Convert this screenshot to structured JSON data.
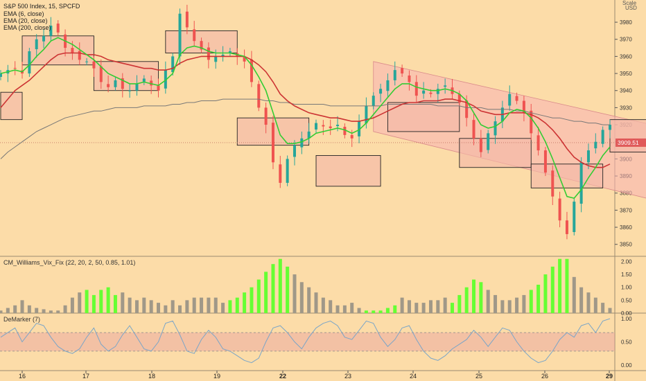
{
  "header": {
    "symbol_line": "S&P 500 Index, 15, SPCFD",
    "indicators": [
      "EMA (6, close)",
      "EMA (20, close)",
      "EMA (200, close)"
    ],
    "currency_line1": "Scale",
    "currency_line2": "USD"
  },
  "panes": {
    "vix_title": "CM_Williams_Vix_Fix (22, 20, 2, 50, 0.85, 1.01)",
    "demarker_title": "DeMarker (7)"
  },
  "last_price": "3909.51",
  "colors": {
    "background": "#fcdca8",
    "bull_candle": "#26a69a",
    "bear_candle": "#ef5350",
    "ema6": "#33cc33",
    "ema20": "#cc3333",
    "ema200": "#777777",
    "vix_green": "#66ff33",
    "vix_gray": "#a09888",
    "demarker_line": "#7aa5c8",
    "channel": "#f7b2b2"
  },
  "chart_data": {
    "type": "candlestick",
    "price_axis": {
      "ticks": [
        3850,
        3860,
        3870,
        3880,
        3890,
        3900,
        3910,
        3920,
        3930,
        3940,
        3950,
        3960,
        3970,
        3980
      ],
      "ylim": [
        3843,
        3993
      ]
    },
    "vix_axis": {
      "ticks": [
        "0.00",
        "0.50",
        "1.00",
        "1.50",
        "2.00"
      ],
      "ylim": [
        0,
        2.2
      ]
    },
    "demarker_axis": {
      "ticks": [
        "0.00",
        "0.50",
        "1.00"
      ],
      "band": [
        0.3,
        0.7
      ]
    },
    "x_ticks": [
      "16",
      "17",
      "18",
      "19",
      "22",
      "23",
      "24",
      "25",
      "26",
      "29"
    ],
    "price_points": [
      3950,
      3952,
      3953,
      3950,
      3963,
      3970,
      3972,
      3978,
      3974,
      3965,
      3962,
      3958,
      3957,
      3953,
      3945,
      3942,
      3946,
      3941,
      3940,
      3944,
      3947,
      3943,
      3940,
      3952,
      3960,
      3985,
      3977,
      3969,
      3964,
      3958,
      3960,
      3961,
      3963,
      3960,
      3957,
      3945,
      3930,
      3920,
      3898,
      3886,
      3900,
      3908,
      3912,
      3916,
      3921,
      3919,
      3918,
      3920,
      3914,
      3912,
      3922,
      3931,
      3937,
      3941,
      3946,
      3952,
      3950,
      3945,
      3937,
      3940,
      3938,
      3941,
      3943,
      3938,
      3933,
      3924,
      3912,
      3904,
      3915,
      3922,
      3930,
      3938,
      3934,
      3927,
      3915,
      3905,
      3892,
      3878,
      3864,
      3856,
      3875,
      3898,
      3905,
      3910,
      3917,
      3920
    ],
    "ema6": [
      3950,
      3951,
      3952,
      3951,
      3955,
      3960,
      3964,
      3969,
      3971,
      3969,
      3967,
      3964,
      3961,
      3958,
      3954,
      3950,
      3948,
      3946,
      3944,
      3944,
      3945,
      3944,
      3943,
      3946,
      3950,
      3961,
      3965,
      3966,
      3965,
      3963,
      3962,
      3962,
      3962,
      3961,
      3960,
      3955,
      3948,
      3940,
      3927,
      3914,
      3909,
      3909,
      3910,
      3912,
      3915,
      3916,
      3917,
      3918,
      3917,
      3915,
      3917,
      3921,
      3926,
      3931,
      3936,
      3941,
      3944,
      3944,
      3942,
      3941,
      3940,
      3940,
      3941,
      3940,
      3938,
      3934,
      3927,
      3920,
      3918,
      3919,
      3922,
      3927,
      3929,
      3928,
      3924,
      3918,
      3910,
      3900,
      3889,
      3878,
      3877,
      3882,
      3889,
      3895,
      3902,
      3907
    ],
    "ema20": [
      3930,
      3935,
      3940,
      3943,
      3946,
      3950,
      3954,
      3958,
      3961,
      3962,
      3962,
      3962,
      3961,
      3961,
      3960,
      3958,
      3957,
      3956,
      3955,
      3954,
      3953,
      3953,
      3952,
      3952,
      3953,
      3956,
      3958,
      3959,
      3960,
      3960,
      3960,
      3960,
      3960,
      3960,
      3960,
      3958,
      3955,
      3951,
      3945,
      3938,
      3934,
      3931,
      3929,
      3927,
      3926,
      3925,
      3924,
      3924,
      3923,
      3922,
      3922,
      3923,
      3924,
      3926,
      3928,
      3930,
      3932,
      3933,
      3933,
      3934,
      3934,
      3934,
      3935,
      3935,
      3934,
      3933,
      3931,
      3928,
      3927,
      3926,
      3926,
      3927,
      3927,
      3927,
      3926,
      3924,
      3921,
      3917,
      3912,
      3906,
      3901,
      3898,
      3896,
      3895,
      3895,
      3897
    ],
    "ema200": [
      3900,
      3904,
      3907,
      3910,
      3913,
      3916,
      3918,
      3920,
      3922,
      3924,
      3925,
      3926,
      3927,
      3928,
      3928,
      3929,
      3930,
      3930,
      3930,
      3930,
      3931,
      3931,
      3931,
      3931,
      3932,
      3932,
      3933,
      3933,
      3934,
      3934,
      3934,
      3935,
      3935,
      3935,
      3935,
      3935,
      3935,
      3934,
      3934,
      3933,
      3933,
      3932,
      3932,
      3932,
      3932,
      3932,
      3931,
      3931,
      3931,
      3931,
      3931,
      3931,
      3931,
      3931,
      3932,
      3932,
      3932,
      3932,
      3932,
      3932,
      3932,
      3931,
      3931,
      3931,
      3931,
      3930,
      3930,
      3930,
      3929,
      3929,
      3929,
      3929,
      3928,
      3928,
      3927,
      3926,
      3925,
      3924,
      3924,
      3923,
      3922,
      3922,
      3921,
      3921,
      3920,
      3920
    ],
    "vix": [
      0.1,
      0.2,
      0.3,
      0.5,
      0.3,
      0.2,
      0.15,
      0.1,
      0.1,
      0.3,
      0.6,
      0.8,
      0.9,
      0.7,
      0.9,
      1.0,
      0.7,
      0.8,
      0.6,
      0.5,
      0.6,
      0.5,
      0.4,
      0.3,
      0.5,
      0.3,
      0.5,
      0.6,
      0.6,
      0.6,
      0.6,
      0.4,
      0.5,
      0.6,
      0.8,
      1.0,
      1.3,
      1.6,
      1.9,
      2.1,
      1.8,
      1.5,
      1.2,
      1.0,
      0.8,
      0.6,
      0.5,
      0.3,
      0.3,
      0.4,
      0.2,
      0.1,
      0.1,
      0.1,
      0.2,
      0.3,
      0.6,
      0.5,
      0.4,
      0.4,
      0.5,
      0.5,
      0.6,
      0.4,
      0.7,
      1.0,
      1.3,
      1.2,
      0.9,
      0.7,
      0.5,
      0.5,
      0.6,
      0.7,
      0.9,
      1.1,
      1.5,
      1.8,
      2.1,
      2.1,
      1.4,
      1.0,
      0.8,
      0.6,
      0.4,
      0.2
    ],
    "vix_green_runs": [
      [
        12,
        16
      ],
      [
        32,
        40
      ],
      [
        51,
        55
      ],
      [
        63,
        67
      ],
      [
        74,
        79
      ]
    ],
    "demarker": [
      0.6,
      0.7,
      0.8,
      0.5,
      0.7,
      0.9,
      0.85,
      0.6,
      0.4,
      0.3,
      0.25,
      0.35,
      0.6,
      0.8,
      0.45,
      0.3,
      0.4,
      0.65,
      0.85,
      0.6,
      0.35,
      0.3,
      0.5,
      0.9,
      0.95,
      0.65,
      0.3,
      0.25,
      0.55,
      0.75,
      0.6,
      0.35,
      0.3,
      0.2,
      0.1,
      0.05,
      0.15,
      0.5,
      0.8,
      0.85,
      0.7,
      0.5,
      0.35,
      0.6,
      0.8,
      0.9,
      0.95,
      0.85,
      0.6,
      0.55,
      0.75,
      0.95,
      0.9,
      0.6,
      0.4,
      0.55,
      0.8,
      0.85,
      0.55,
      0.3,
      0.15,
      0.1,
      0.2,
      0.35,
      0.45,
      0.55,
      0.75,
      0.6,
      0.4,
      0.6,
      0.8,
      0.75,
      0.5,
      0.3,
      0.15,
      0.05,
      0.1,
      0.3,
      0.55,
      0.7,
      0.6,
      0.85,
      0.9,
      0.7,
      0.95,
      1.0
    ],
    "boxes": [
      {
        "x0": 0,
        "x1": 3,
        "y0": 3939,
        "y1": 3923
      },
      {
        "x0": 3,
        "x1": 13,
        "y0": 3972,
        "y1": 3955
      },
      {
        "x0": 13,
        "x1": 22,
        "y0": 3957,
        "y1": 3940
      },
      {
        "x0": 23,
        "x1": 33,
        "y0": 3975,
        "y1": 3962
      },
      {
        "x0": 33,
        "x1": 43,
        "y0": 3924,
        "y1": 3908
      },
      {
        "x0": 44,
        "x1": 53,
        "y0": 3902,
        "y1": 3884
      },
      {
        "x0": 54,
        "x1": 64,
        "y0": 3933,
        "y1": 3916
      },
      {
        "x0": 64,
        "x1": 74,
        "y0": 3912,
        "y1": 3895
      },
      {
        "x0": 74,
        "x1": 84,
        "y0": 3897,
        "y1": 3883
      },
      {
        "x0": 85,
        "x1": 94,
        "y0": 3923,
        "y1": 3904
      }
    ],
    "channel": {
      "x0": 52,
      "x1": 94,
      "top": [
        3957,
        3917
      ],
      "bottom": [
        3916,
        3873
      ]
    }
  }
}
